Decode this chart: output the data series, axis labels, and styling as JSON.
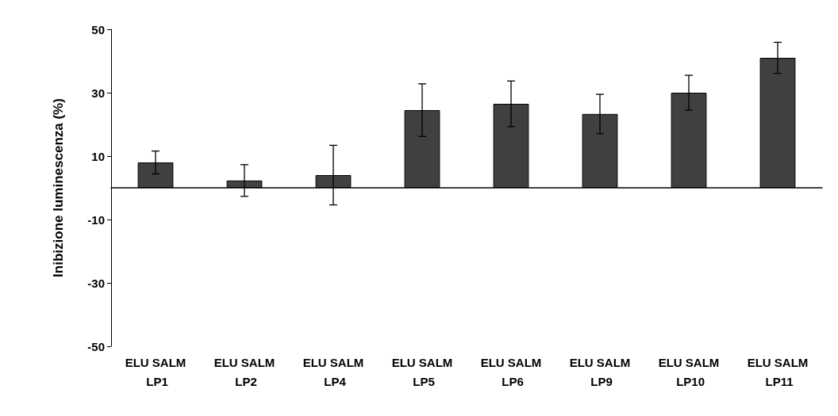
{
  "chart_data": {
    "type": "bar",
    "ylabel": "Inibizione luminescenza (%)",
    "categories": [
      "ELU SALM LP1",
      "ELU SALM LP2",
      "ELU SALM LP4",
      "ELU SALM LP5",
      "ELU SALM LP6",
      "ELU SALM LP9",
      "ELU SALM LP10",
      "ELU SALM LP11"
    ],
    "values": [
      8,
      2.3,
      4,
      24.5,
      26.5,
      23.3,
      30,
      41
    ],
    "errors": [
      3.6,
      5,
      9.4,
      8.3,
      7.2,
      6.2,
      5.5,
      4.9
    ],
    "color": "#404040",
    "ylim": [
      -50,
      50
    ],
    "yticks": [
      -50,
      -30,
      -10,
      10,
      30,
      50
    ],
    "grid": false
  }
}
